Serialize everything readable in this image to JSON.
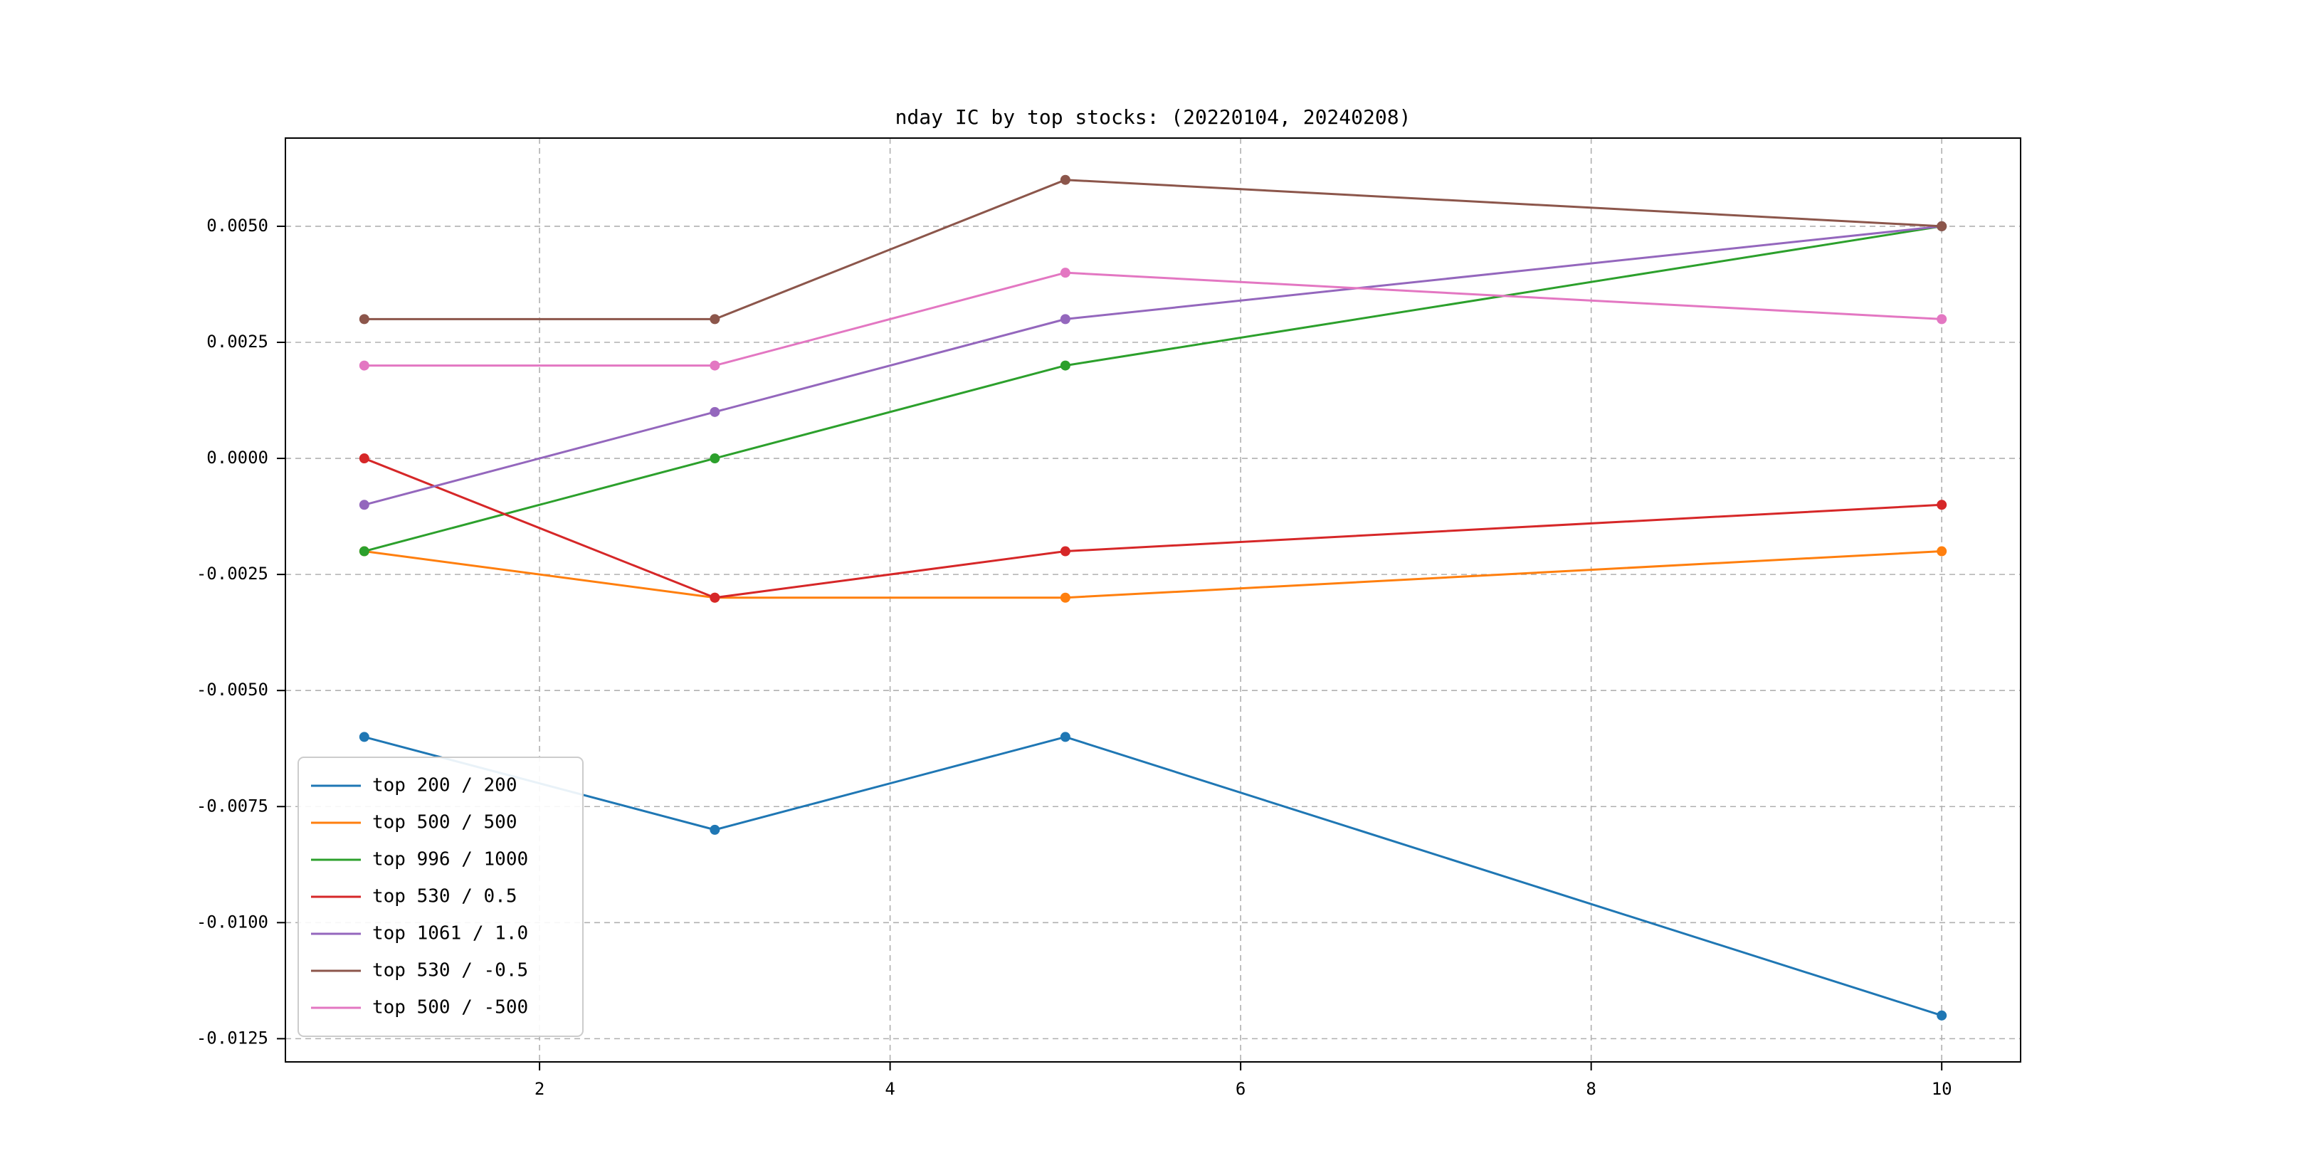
{
  "page": {
    "background_color": "#ffffff"
  },
  "chart": {
    "title": "nday IC by top stocks: (20220104, 20240208)"
  },
  "chart_data": {
    "type": "line",
    "title": "nday IC by top stocks: (20220104, 20240208)",
    "xlabel": "",
    "ylabel": "",
    "x": [
      1,
      3,
      5,
      10
    ],
    "xlim": [
      0.55,
      10.45
    ],
    "ylim": [
      -0.013,
      0.0069
    ],
    "xticks": [
      2,
      4,
      6,
      8,
      10
    ],
    "xtick_labels": [
      "2",
      "4",
      "6",
      "8",
      "10"
    ],
    "yticks": [
      0.005,
      0.0025,
      0.0,
      -0.0025,
      -0.005,
      -0.0075,
      -0.01,
      -0.0125
    ],
    "ytick_labels": [
      "0.0050",
      "0.0025",
      "0.0000",
      "-0.0025",
      "-0.0050",
      "-0.0075",
      "-0.0100",
      "-0.0125"
    ],
    "grid": true,
    "grid_style": "dashed",
    "grid_color": "#b0b0b0",
    "legend_position": "lower left",
    "marker": "circle",
    "series": [
      {
        "name": "top 200 / 200",
        "color": "#1f77b4",
        "values": [
          -0.006,
          -0.008,
          -0.006,
          -0.012
        ]
      },
      {
        "name": "top 500 / 500",
        "color": "#ff7f0e",
        "values": [
          -0.002,
          -0.003,
          -0.003,
          -0.002
        ]
      },
      {
        "name": "top 996 / 1000",
        "color": "#2ca02c",
        "values": [
          -0.002,
          0.0,
          0.002,
          0.005
        ]
      },
      {
        "name": "top 530 / 0.5",
        "color": "#d62728",
        "values": [
          0.0,
          -0.003,
          -0.002,
          -0.001
        ]
      },
      {
        "name": "top 1061 / 1.0",
        "color": "#9467bd",
        "values": [
          -0.001,
          0.001,
          0.003,
          0.005
        ]
      },
      {
        "name": "top 530 / -0.5",
        "color": "#8c564b",
        "values": [
          0.003,
          0.003,
          0.006,
          0.005
        ]
      },
      {
        "name": "top 500 / -500",
        "color": "#e377c2",
        "values": [
          0.002,
          0.002,
          0.004,
          0.003
        ]
      }
    ]
  }
}
